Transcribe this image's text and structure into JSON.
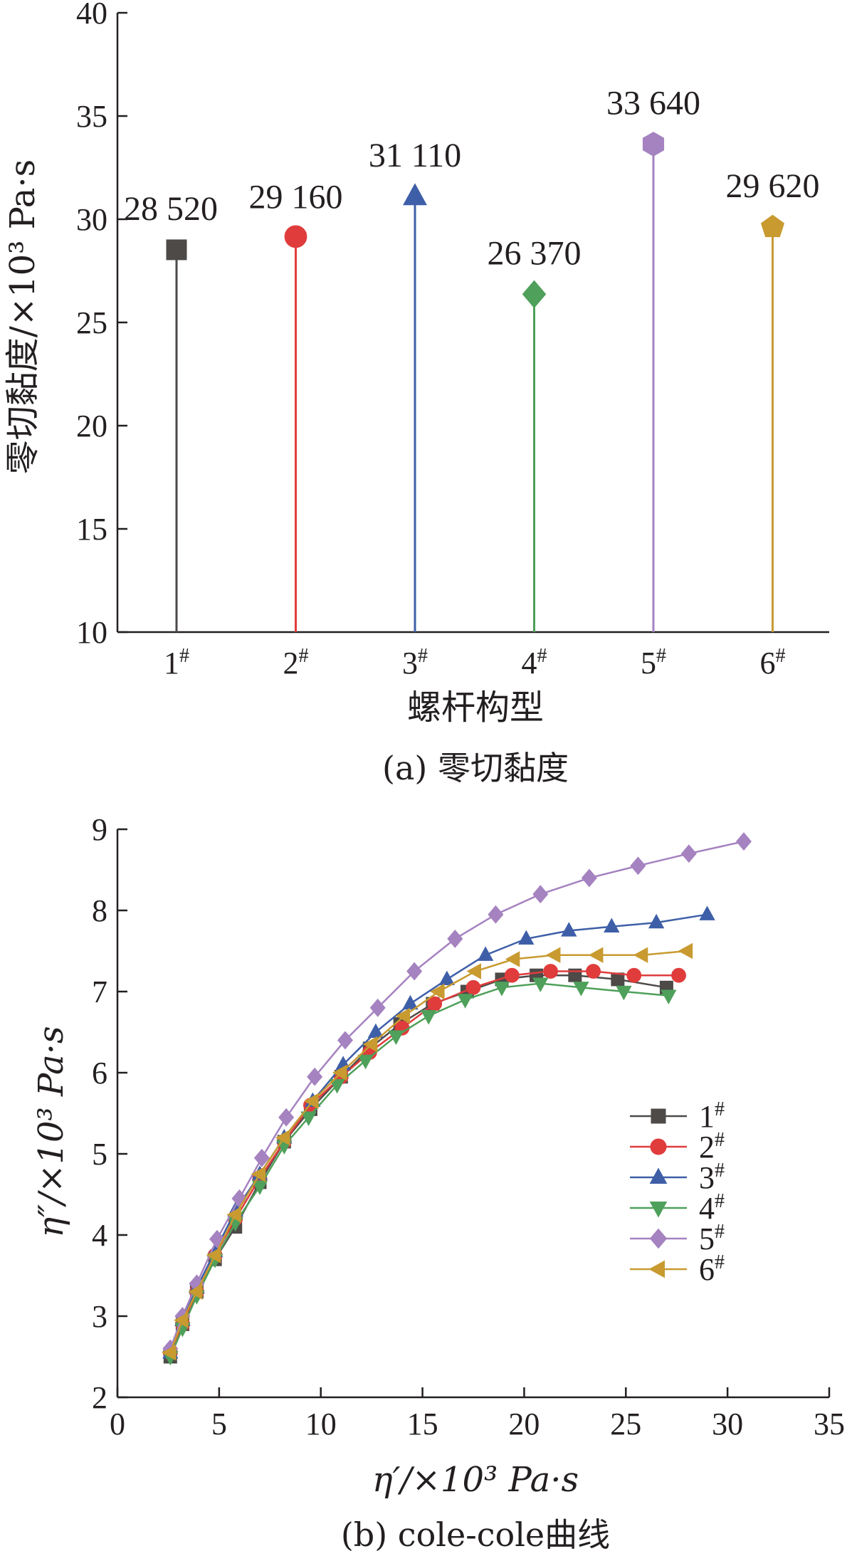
{
  "chart_data": [
    {
      "type": "bar",
      "title": "",
      "caption": "(a) 零切黏度",
      "xlabel": "螺杆构型",
      "ylabel": "零切黏度/×10³ Pa·s",
      "ylim": [
        10,
        40
      ],
      "yticks": [
        "10",
        "15",
        "20",
        "25",
        "30",
        "35",
        "40"
      ],
      "categories": [
        "1#",
        "2#",
        "3#",
        "4#",
        "5#",
        "6#"
      ],
      "category_labels": [
        {
          "num": "1",
          "sup": "#"
        },
        {
          "num": "2",
          "sup": "#"
        },
        {
          "num": "3",
          "sup": "#"
        },
        {
          "num": "4",
          "sup": "#"
        },
        {
          "num": "5",
          "sup": "#"
        },
        {
          "num": "6",
          "sup": "#"
        }
      ],
      "values": [
        28.52,
        29.16,
        31.11,
        26.37,
        33.64,
        29.62
      ],
      "data_labels": [
        "28 520",
        "29 160",
        "31 110",
        "26 370",
        "33 640",
        "29 620"
      ],
      "colors": [
        "#4d4a48",
        "#e03c3c",
        "#3e5fa8",
        "#4ea05a",
        "#a582c0",
        "#c89a30"
      ],
      "markers": [
        "square",
        "circle",
        "triangle-up",
        "diamond",
        "hexagon",
        "pentagon"
      ],
      "grid": false
    },
    {
      "type": "line",
      "title": "",
      "caption": "(b) cole-cole曲线",
      "xlabel": "η′/×10³ Pa·s",
      "ylabel": "η″/×10³ Pa·s",
      "xlim": [
        0,
        35
      ],
      "ylim": [
        2,
        9
      ],
      "xticks": [
        "0",
        "5",
        "10",
        "15",
        "20",
        "25",
        "30",
        "35"
      ],
      "yticks": [
        "2",
        "3",
        "4",
        "5",
        "6",
        "7",
        "8",
        "9"
      ],
      "legend_position": "right",
      "grid": false,
      "series": [
        {
          "name": "1#",
          "num": "1",
          "sup": "#",
          "color": "#4d4a48",
          "marker": "square",
          "x": [
            2.6,
            3.2,
            3.9,
            4.8,
            5.8,
            7.0,
            8.2,
            9.5,
            11.0,
            12.4,
            13.9,
            15.5,
            17.2,
            18.9,
            20.6,
            22.5,
            24.6,
            27.0
          ],
          "y": [
            2.5,
            2.9,
            3.3,
            3.7,
            4.1,
            4.65,
            5.15,
            5.55,
            5.95,
            6.3,
            6.6,
            6.85,
            7.0,
            7.15,
            7.2,
            7.2,
            7.15,
            7.05
          ]
        },
        {
          "name": "2#",
          "num": "2",
          "sup": "#",
          "color": "#e03c3c",
          "marker": "circle",
          "x": [
            2.6,
            3.2,
            3.9,
            4.8,
            5.8,
            7.0,
            8.2,
            9.5,
            11.0,
            12.4,
            14.0,
            15.6,
            17.5,
            19.4,
            21.3,
            23.4,
            25.4,
            27.6
          ],
          "y": [
            2.55,
            2.9,
            3.3,
            3.75,
            4.2,
            4.7,
            5.15,
            5.6,
            5.95,
            6.25,
            6.55,
            6.85,
            7.05,
            7.2,
            7.25,
            7.25,
            7.2,
            7.2
          ]
        },
        {
          "name": "3#",
          "num": "3",
          "sup": "#",
          "color": "#3e5fa8",
          "marker": "triangle-up",
          "x": [
            2.6,
            3.2,
            3.9,
            4.8,
            5.8,
            7.0,
            8.2,
            9.6,
            11.1,
            12.7,
            14.4,
            16.2,
            18.1,
            20.1,
            22.2,
            24.3,
            26.5,
            29.0
          ],
          "y": [
            2.55,
            2.95,
            3.35,
            3.8,
            4.3,
            4.75,
            5.2,
            5.65,
            6.1,
            6.5,
            6.85,
            7.15,
            7.45,
            7.65,
            7.75,
            7.8,
            7.85,
            7.95
          ]
        },
        {
          "name": "4#",
          "num": "4",
          "sup": "#",
          "color": "#4ea05a",
          "marker": "triangle-down",
          "x": [
            2.6,
            3.2,
            3.9,
            4.8,
            5.8,
            7.0,
            8.2,
            9.4,
            10.8,
            12.2,
            13.7,
            15.3,
            17.1,
            18.9,
            20.8,
            22.8,
            24.9,
            27.1
          ],
          "y": [
            2.5,
            2.85,
            3.25,
            3.7,
            4.15,
            4.6,
            5.1,
            5.45,
            5.85,
            6.15,
            6.45,
            6.7,
            6.9,
            7.05,
            7.1,
            7.05,
            7.0,
            6.95
          ]
        },
        {
          "name": "5#",
          "num": "5",
          "sup": "#",
          "color": "#a582c0",
          "marker": "diamond",
          "x": [
            2.6,
            3.2,
            3.9,
            4.9,
            6.0,
            7.1,
            8.3,
            9.7,
            11.2,
            12.8,
            14.6,
            16.6,
            18.6,
            20.8,
            23.2,
            25.6,
            28.1,
            30.8
          ],
          "y": [
            2.6,
            3.0,
            3.4,
            3.95,
            4.45,
            4.95,
            5.45,
            5.95,
            6.4,
            6.8,
            7.25,
            7.65,
            7.95,
            8.2,
            8.4,
            8.55,
            8.7,
            8.85
          ]
        },
        {
          "name": "6#",
          "num": "6",
          "sup": "#",
          "color": "#c89a30",
          "marker": "triangle-left",
          "x": [
            2.6,
            3.2,
            3.9,
            4.8,
            5.8,
            7.0,
            8.2,
            9.6,
            11.0,
            12.5,
            14.1,
            15.8,
            17.6,
            19.5,
            21.5,
            23.6,
            25.8,
            28.0
          ],
          "y": [
            2.55,
            2.95,
            3.3,
            3.75,
            4.25,
            4.75,
            5.2,
            5.65,
            6.0,
            6.35,
            6.7,
            7.0,
            7.25,
            7.4,
            7.45,
            7.45,
            7.45,
            7.5
          ]
        }
      ]
    }
  ]
}
